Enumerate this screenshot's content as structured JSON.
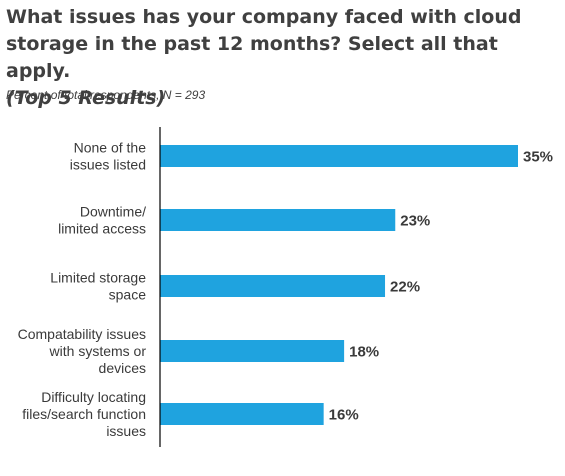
{
  "title": {
    "line1": "What issues has your company faced with cloud",
    "line2": "storage in the past 12 months? Select all that apply.",
    "line3": "(Top 5 Results)"
  },
  "subtitle": "Percent of total respondents, N = 293",
  "colors": {
    "bar": "#1fa3df",
    "axis": "#000000",
    "text": "#3a3a3a"
  },
  "chart_data": {
    "type": "bar",
    "orientation": "horizontal",
    "categories": [
      [
        "None of the",
        "issues listed"
      ],
      [
        "Downtime/",
        "limited access"
      ],
      [
        "Limited storage",
        "space"
      ],
      [
        "Compatability issues",
        "with systems or",
        "devices"
      ],
      [
        "Difficulty locating",
        "files/search function",
        "issues"
      ]
    ],
    "values": [
      35,
      23,
      22,
      18,
      16
    ],
    "value_labels": [
      "35%",
      "23%",
      "22%",
      "18%",
      "16%"
    ],
    "unit": "%",
    "xlim": [
      0,
      35
    ],
    "grid": false,
    "legend": "none"
  }
}
